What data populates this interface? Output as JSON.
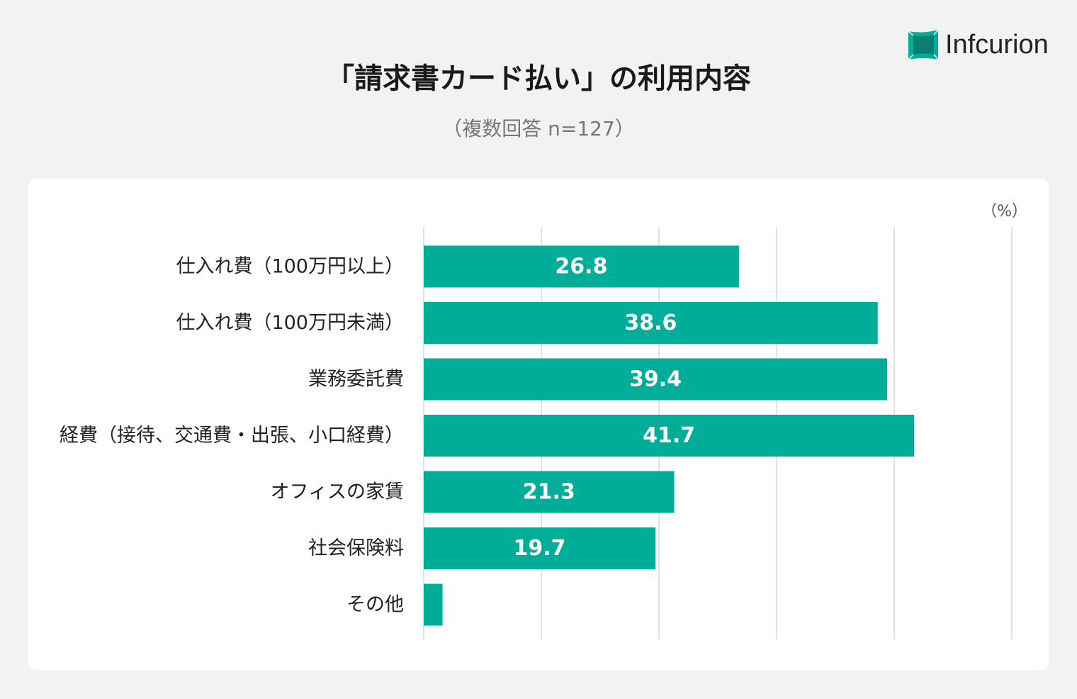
{
  "logo": {
    "text": "Infcurion"
  },
  "chart_data": {
    "type": "bar",
    "orientation": "horizontal",
    "title": "「請求書カード払い」の利用内容",
    "subtitle": "（複数回答 n=127）",
    "unit": "（%）",
    "categories": [
      "仕入れ費（100万円以上）",
      "仕入れ費（100万円未満）",
      "業務委託費",
      "経費（接待、交通費・出張、小口経費）",
      "オフィスの家賃",
      "社会保険料",
      "その他"
    ],
    "values": [
      26.8,
      38.6,
      39.4,
      41.7,
      21.3,
      19.7,
      1.6
    ],
    "data_labels": [
      "26.8",
      "38.6",
      "39.4",
      "41.7",
      "21.3",
      "19.7",
      ""
    ],
    "xlim": [
      0,
      50
    ],
    "grid": true,
    "bar_color": "#00ad98"
  }
}
